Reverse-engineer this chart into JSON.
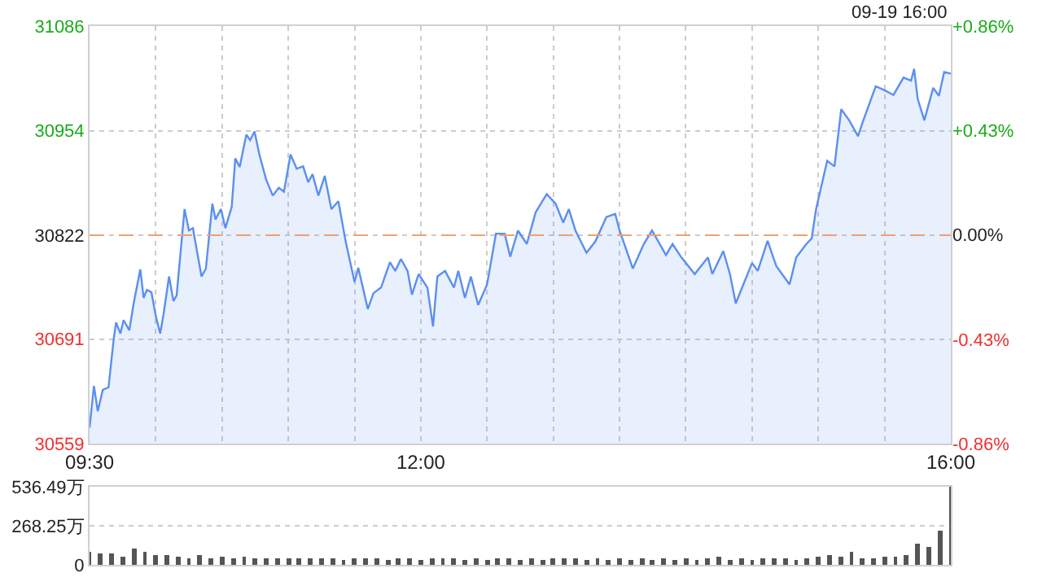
{
  "chart_data": [
    {
      "type": "area",
      "grid": true,
      "annotations": [
        "09-19 16:00"
      ],
      "x": [
        9.5,
        9.533,
        9.562,
        9.6,
        9.643,
        9.683,
        9.7,
        9.733,
        9.757,
        9.8,
        9.833,
        9.883,
        9.908,
        9.933,
        9.967,
        10.0,
        10.033,
        10.058,
        10.1,
        10.133,
        10.157,
        10.217,
        10.25,
        10.28,
        10.345,
        10.378,
        10.427,
        10.45,
        10.492,
        10.525,
        10.573,
        10.6,
        10.633,
        10.683,
        10.712,
        10.745,
        10.783,
        10.833,
        10.883,
        10.928,
        10.967,
        11.017,
        11.063,
        11.112,
        11.15,
        11.183,
        11.227,
        11.275,
        11.325,
        11.378,
        11.433,
        11.5,
        11.528,
        11.6,
        11.643,
        11.7,
        11.767,
        11.807,
        11.85,
        11.9,
        11.933,
        11.983,
        12.05,
        12.092,
        12.125,
        12.183,
        12.25,
        12.283,
        12.333,
        12.378,
        12.433,
        12.5,
        12.567,
        12.633,
        12.675,
        12.733,
        12.8,
        12.867,
        12.95,
        13.017,
        13.075,
        13.117,
        13.167,
        13.25,
        13.317,
        13.4,
        13.467,
        13.5,
        13.6,
        13.683,
        13.745,
        13.85,
        13.9,
        13.967,
        14.067,
        14.167,
        14.2,
        14.283,
        14.333,
        14.377,
        14.425,
        14.5,
        14.543,
        14.617,
        14.683,
        14.783,
        14.833,
        14.91,
        14.95,
        14.983,
        15.067,
        15.122,
        15.173,
        15.233,
        15.3,
        15.333,
        15.433,
        15.5,
        15.567,
        15.643,
        15.7,
        15.723,
        15.75,
        15.8,
        15.867,
        15.91,
        15.95,
        16.0
      ],
      "series": [
        {
          "color": "#5b8ff0",
          "values": [
            30579,
            30632,
            30600,
            30627,
            30630,
            30692,
            30712,
            30698,
            30715,
            30702,
            30736,
            30779,
            30743,
            30753,
            30750,
            30720,
            30698,
            30722,
            30770,
            30739,
            30746,
            30855,
            30828,
            30831,
            30770,
            30780,
            30862,
            30842,
            30855,
            30831,
            30858,
            30919,
            30908,
            30949,
            30942,
            30953,
            30923,
            30892,
            30872,
            30882,
            30877,
            30924,
            30906,
            30909,
            30889,
            30899,
            30872,
            30897,
            30855,
            30865,
            30814,
            30763,
            30781,
            30729,
            30749,
            30756,
            30788,
            30777,
            30792,
            30777,
            30747,
            30773,
            30756,
            30707,
            30770,
            30777,
            30756,
            30777,
            30743,
            30770,
            30734,
            30760,
            30824,
            30824,
            30795,
            30828,
            30811,
            30851,
            30874,
            30862,
            30838,
            30855,
            30828,
            30800,
            30814,
            30845,
            30849,
            30828,
            30780,
            30811,
            30828,
            30797,
            30811,
            30794,
            30773,
            30794,
            30773,
            30802,
            30773,
            30736,
            30756,
            30787,
            30777,
            30815,
            30783,
            30760,
            30794,
            30811,
            30818,
            30855,
            30916,
            30909,
            30981,
            30967,
            30947,
            30964,
            31010,
            31005,
            30999,
            31021,
            31017,
            31032,
            30994,
            30967,
            31008,
            30998,
            31028,
            31026
          ]
        }
      ],
      "xlim": [
        9.5,
        16
      ],
      "xticks": [
        {
          "value": 9.5,
          "label": "09:30"
        },
        {
          "value": 10,
          "label": null
        },
        {
          "value": 10.5,
          "label": null
        },
        {
          "value": 11,
          "label": null
        },
        {
          "value": 11.5,
          "label": null
        },
        {
          "value": 12,
          "label": "12:00"
        },
        {
          "value": 12.5,
          "label": null
        },
        {
          "value": 13,
          "label": null
        },
        {
          "value": 13.5,
          "label": null
        },
        {
          "value": 14,
          "label": null
        },
        {
          "value": 14.5,
          "label": null
        },
        {
          "value": 15,
          "label": null
        },
        {
          "value": 15.5,
          "label": null
        },
        {
          "value": 16,
          "label": "16:00"
        }
      ],
      "ylim": [
        30559,
        31086
      ],
      "yticks": [
        30559,
        30691,
        30822,
        30954,
        31086
      ],
      "y2lim": [
        -0.86,
        0.86
      ],
      "y2ticks": [
        {
          "value": -0.86,
          "label": "-0.86%"
        },
        {
          "value": -0.43,
          "label": "-0.43%"
        },
        {
          "value": 0,
          "label": "0.00%"
        },
        {
          "value": 0.43,
          "label": "+0.43%"
        },
        {
          "value": 0.86,
          "label": "+0.86%"
        }
      ],
      "ref_lines": [
        {
          "axis": "y",
          "value": 30822,
          "color": "#f0a070",
          "line_style": "dashed"
        }
      ]
    },
    {
      "type": "bar",
      "grid": "y",
      "tick_labels": "y",
      "xlim": [
        9.5,
        16
      ],
      "x": [
        9.5,
        9.583,
        9.667,
        9.75,
        9.833,
        9.917,
        10.0,
        10.083,
        10.167,
        10.25,
        10.333,
        10.417,
        10.5,
        10.583,
        10.667,
        10.75,
        10.833,
        10.917,
        11.0,
        11.083,
        11.167,
        11.25,
        11.333,
        11.417,
        11.5,
        11.583,
        11.667,
        11.75,
        11.833,
        11.917,
        12.0,
        12.083,
        12.167,
        12.25,
        12.333,
        12.417,
        12.5,
        12.583,
        12.667,
        12.75,
        12.833,
        12.917,
        13.0,
        13.083,
        13.167,
        13.25,
        13.333,
        13.417,
        13.5,
        13.583,
        13.667,
        13.75,
        13.833,
        13.917,
        14.0,
        14.083,
        14.167,
        14.25,
        14.333,
        14.417,
        14.5,
        14.583,
        14.667,
        14.75,
        14.833,
        14.917,
        15.0,
        15.083,
        15.167,
        15.25,
        15.333,
        15.417,
        15.5,
        15.583,
        15.667,
        15.75,
        15.833,
        15.917,
        16.0
      ],
      "series": [
        {
          "color": "#555555",
          "values": [
            90,
            80,
            80,
            60,
            110,
            90,
            70,
            70,
            60,
            50,
            70,
            50,
            60,
            40,
            60,
            40,
            50,
            50,
            40,
            50,
            40,
            50,
            40,
            30,
            40,
            40,
            40,
            30,
            50,
            40,
            30,
            40,
            50,
            40,
            30,
            50,
            30,
            40,
            40,
            30,
            40,
            30,
            40,
            50,
            40,
            30,
            40,
            30,
            40,
            30,
            40,
            30,
            50,
            30,
            40,
            30,
            40,
            60,
            30,
            40,
            30,
            50,
            40,
            40,
            30,
            40,
            60,
            70,
            60,
            90,
            50,
            50,
            60,
            60,
            70,
            150,
            120,
            230,
            536.49
          ]
        }
      ],
      "ylim": [
        0,
        536.49
      ],
      "yticks": [
        0,
        {
          "value": 268.25,
          "label": "268.25万"
        },
        {
          "value": 536.49,
          "label": "536.49万"
        }
      ]
    }
  ]
}
